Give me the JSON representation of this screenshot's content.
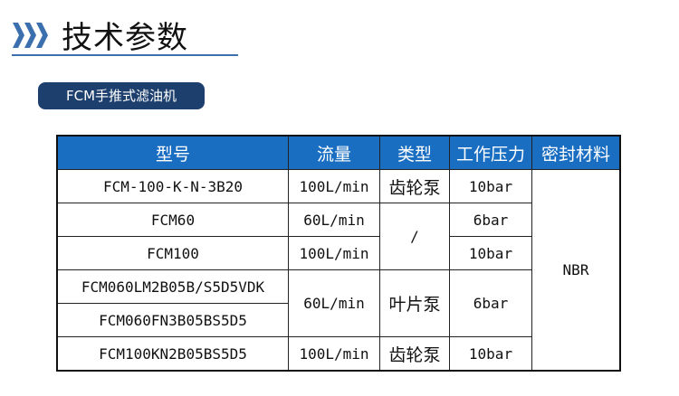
{
  "header": {
    "title": "技术参数",
    "accent": "#3b6fae",
    "icon": "triple-chevron-right-icon"
  },
  "badge": {
    "label": "FCM手推式滤油机",
    "color": "#1d3f6e"
  },
  "table": {
    "header_color": "#1a6ec2",
    "columns": [
      "型号",
      "流量",
      "类型",
      "工作压力",
      "密封材料"
    ],
    "rows": [
      {
        "model": "FCM-100-K-N-3B20",
        "flow": "100L/min",
        "type": "齿轮泵",
        "pressure": "10bar"
      },
      {
        "model": "FCM60",
        "flow": "60L/min",
        "type": "/",
        "pressure": "6bar"
      },
      {
        "model": "FCM100",
        "flow": "100L/min",
        "pressure": "10bar"
      },
      {
        "model": "FCM060LM2B05B/S5D5VDK",
        "flow": "60L/min",
        "type": "叶片泵",
        "pressure": "6bar"
      },
      {
        "model": "FCM060FN3B05BS5D5"
      },
      {
        "model": "FCM100KN2B05BS5D5",
        "flow": "100L/min",
        "type": "齿轮泵",
        "pressure": "10bar"
      }
    ],
    "seal": "NBR"
  }
}
